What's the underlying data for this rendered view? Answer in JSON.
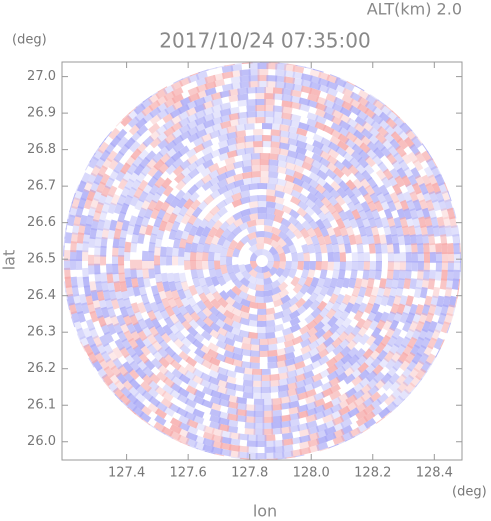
{
  "chart_data": {
    "type": "radar-ppi",
    "title": "2017/10/24 07:35:00",
    "altitude_label": "ALT(km) 2.0",
    "x_label": "lon",
    "y_label": "lat",
    "x_unit": "(deg)",
    "y_unit": "(deg)",
    "xlim": [
      127.19,
      128.49
    ],
    "ylim": [
      25.95,
      27.04
    ],
    "xticks": [
      127.4,
      127.6,
      127.8,
      {
        "value": 128.0,
        "label": "128.0"
      },
      128.2,
      128.4
    ],
    "yticks": [
      {
        "value": 26.0,
        "label": "26.0"
      },
      26.1,
      26.2,
      26.3,
      26.4,
      26.5,
      26.6,
      26.7,
      26.8,
      26.9,
      {
        "value": 27.0,
        "label": "27.0"
      }
    ],
    "positive_color": "#f6a9a9",
    "negative_color": "#a9a9f6"
  }
}
